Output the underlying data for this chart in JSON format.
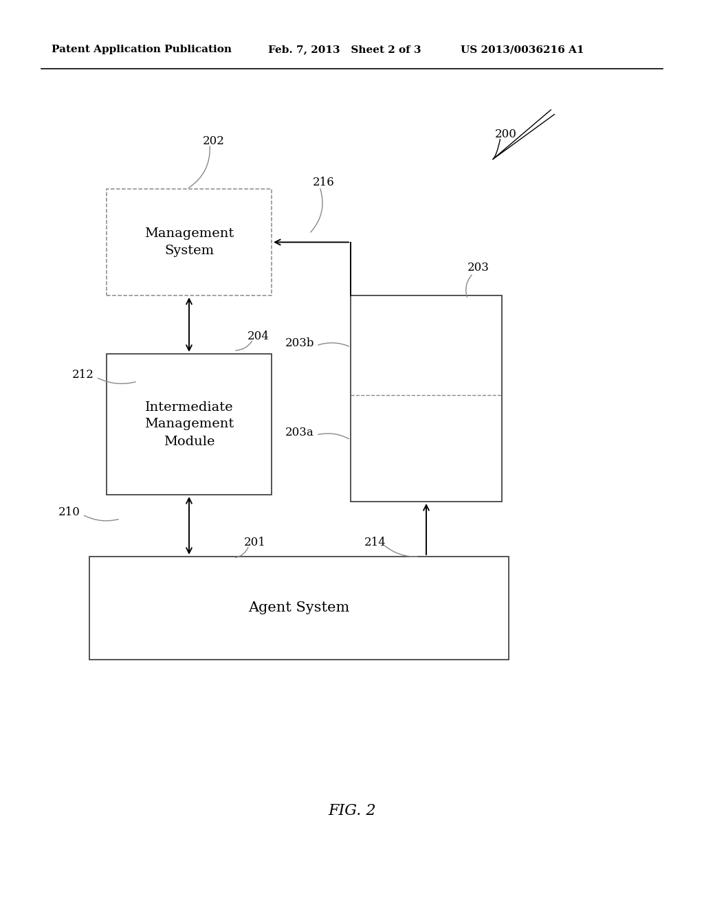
{
  "bg_color": "#ffffff",
  "header_left": "Patent Application Publication",
  "header_mid": "Feb. 7, 2013   Sheet 2 of 3",
  "header_right": "US 2013/0036216 A1",
  "fig_label": "FIG. 2"
}
